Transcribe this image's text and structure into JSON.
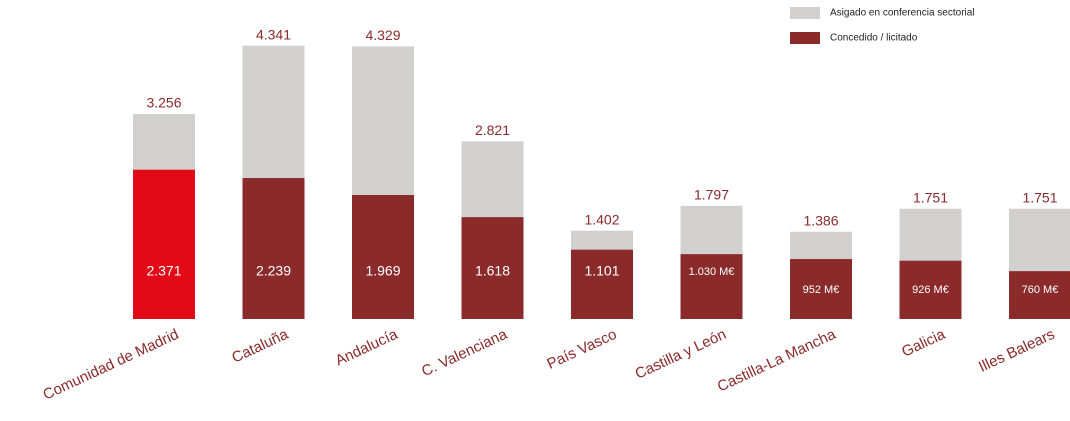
{
  "chart_data": {
    "type": "overlap-bar",
    "categories": [
      "Comunidad de Madrid",
      "Cataluña",
      "Andalucía",
      "C. Valenciana",
      "País Vasco",
      "Castilla y León",
      "Castilla-La Mancha",
      "Galicia",
      "Illes Balears"
    ],
    "series": [
      {
        "name": "Asigado en conferencia sectorial",
        "color": "#d1d0cf",
        "values": [
          3256,
          4341,
          4329,
          2821,
          1402,
          1797,
          1386,
          1751,
          1751
        ],
        "value_labels": [
          "3.256",
          "4.341",
          "4.329",
          "2.821",
          "1.402",
          "1.797",
          "1.386",
          "1.751",
          "1.751"
        ]
      },
      {
        "name": "Concedido / licitado",
        "color": "#8b2a2b",
        "colors": [
          "#e30a17",
          "#8b2a2b",
          "#8b2a2b",
          "#8b2a2b",
          "#8b2a2b",
          "#8b2a2b",
          "#8b2a2b",
          "#8b2a2b",
          "#8b2a2b"
        ],
        "values": [
          2371,
          2239,
          1969,
          1618,
          1101,
          1030,
          952,
          926,
          760
        ],
        "value_labels": [
          "2.371",
          "2.239",
          "1.969",
          "1.618",
          "1.101",
          "1.030 M€",
          "952 M€",
          "926 M€",
          "760 M€"
        ]
      }
    ]
  }
}
